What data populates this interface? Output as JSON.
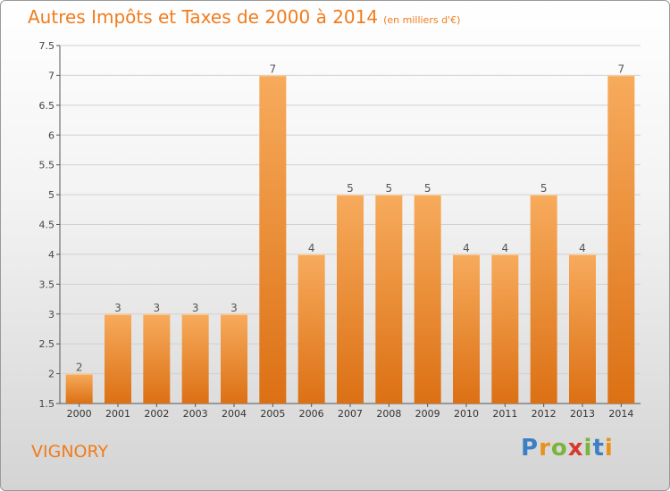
{
  "title": "Autres Impôts et Taxes de 2000 à 2014",
  "title_unit": "(en milliers d'€)",
  "commune": "VIGNORY",
  "brand_logo": "Proxiti",
  "colors": {
    "accent": "#f07c1c",
    "bar_light": "#f6a857",
    "bar_dark": "#de7316",
    "gridline": "#d0d0d0"
  },
  "chart_data": {
    "type": "bar",
    "categories": [
      "2000",
      "2001",
      "2002",
      "2003",
      "2004",
      "2005",
      "2006",
      "2007",
      "2008",
      "2009",
      "2010",
      "2011",
      "2012",
      "2013",
      "2014"
    ],
    "values": [
      2,
      3,
      3,
      3,
      3,
      7,
      4,
      5,
      5,
      5,
      4,
      4,
      5,
      4,
      7
    ],
    "data_labels": [
      "2",
      "3",
      "3",
      "3",
      "3",
      "7",
      "4",
      "5",
      "5",
      "5",
      "4",
      "4",
      "5",
      "4",
      "7"
    ],
    "ylim": [
      1.5,
      7.5
    ],
    "yticks": [
      1.5,
      2,
      2.5,
      3,
      3.5,
      4,
      4.5,
      5,
      5.5,
      6,
      6.5,
      7,
      7.5
    ],
    "ytick_labels": [
      "1.5",
      "2",
      "2.5",
      "3",
      "3.5",
      "4",
      "4.5",
      "5",
      "5.5",
      "6",
      "6.5",
      "7",
      "7.5"
    ],
    "grid": true,
    "title": "Autres Impôts et Taxes de 2000 à 2014",
    "xlabel": "",
    "ylabel": ""
  }
}
